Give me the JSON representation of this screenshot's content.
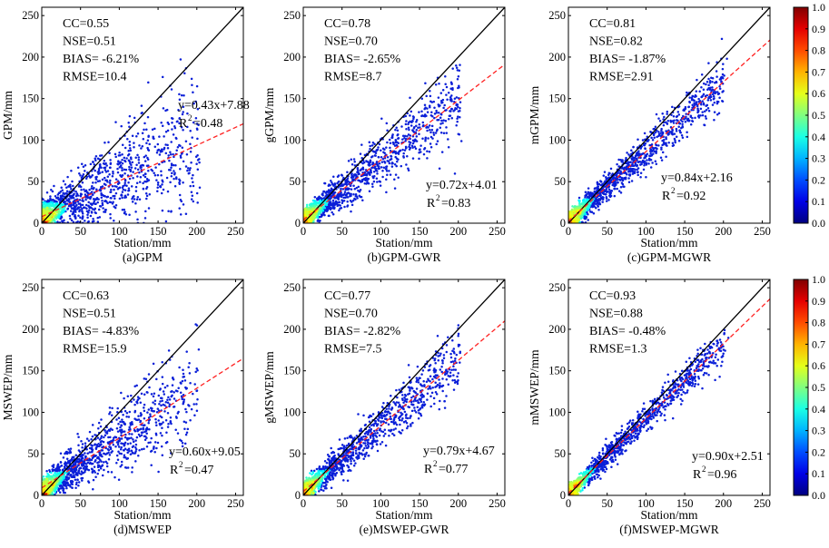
{
  "figure": {
    "colorbar": {
      "ticks": [
        "1.0",
        "0.9",
        "0.8",
        "0.7",
        "0.6",
        "0.5",
        "0.4",
        "0.3",
        "0.2",
        "0.1",
        "0.0"
      ]
    },
    "colors": {
      "points": "#0a1fd8",
      "fit_line": "#ff2020",
      "one_to_one": "#000000"
    }
  },
  "chart_data": [
    {
      "type": "scatter",
      "caption": "(a)GPM",
      "xlabel": "Station/mm",
      "ylabel": "GPM/mm",
      "xlim": [
        0,
        260
      ],
      "ylim": [
        0,
        260
      ],
      "xticks": [
        "0",
        "50",
        "100",
        "150",
        "200",
        "250"
      ],
      "yticks": [
        "0",
        "50",
        "100",
        "150",
        "200",
        "250"
      ],
      "stats": [
        "CC=0.55",
        "NSE=0.51",
        "BIAS= -6.21%",
        "RMSE=10.4"
      ],
      "fit_eq": "y=0.43x+7.88",
      "r2_prefix": "R",
      "r2_value": "=0.48",
      "fit": {
        "slope": 0.43,
        "intercept": 7.88
      }
    },
    {
      "type": "scatter",
      "caption": "(b)GPM-GWR",
      "xlabel": "Station/mm",
      "ylabel": "gGPM/mm",
      "xlim": [
        0,
        260
      ],
      "ylim": [
        0,
        260
      ],
      "xticks": [
        "0",
        "50",
        "100",
        "150",
        "200",
        "250"
      ],
      "yticks": [
        "0",
        "50",
        "100",
        "150",
        "200",
        "250"
      ],
      "stats": [
        "CC=0.78",
        "NSE=0.70",
        "BIAS= -2.65%",
        "RMSE=8.7"
      ],
      "fit_eq": "y=0.72x+4.01",
      "r2_prefix": "R",
      "r2_value": "=0.83",
      "fit": {
        "slope": 0.72,
        "intercept": 4.01
      }
    },
    {
      "type": "scatter",
      "caption": "(c)GPM-MGWR",
      "xlabel": "Station/mm",
      "ylabel": "mGPM/mm",
      "xlim": [
        0,
        260
      ],
      "ylim": [
        0,
        260
      ],
      "xticks": [
        "0",
        "50",
        "100",
        "150",
        "200",
        "250"
      ],
      "yticks": [
        "0",
        "50",
        "100",
        "150",
        "200",
        "250"
      ],
      "stats": [
        "CC=0.81",
        "NSE=0.82",
        "BIAS= -1.87%",
        "RMSE=2.91"
      ],
      "fit_eq": "y=0.84x+2.16",
      "r2_prefix": "R",
      "r2_value": "=0.92",
      "fit": {
        "slope": 0.84,
        "intercept": 2.16
      }
    },
    {
      "type": "scatter",
      "caption": "(d)MSWEP",
      "xlabel": "Station/mm",
      "ylabel": "MSWEP/mm",
      "xlim": [
        0,
        260
      ],
      "ylim": [
        0,
        260
      ],
      "xticks": [
        "0",
        "50",
        "100",
        "150",
        "200",
        "250"
      ],
      "yticks": [
        "0",
        "50",
        "100",
        "150",
        "200",
        "250"
      ],
      "stats": [
        "CC=0.63",
        "NSE=0.51",
        "BIAS= -4.83%",
        "RMSE=15.9"
      ],
      "fit_eq": "y=0.60x+9.05",
      "r2_prefix": "R",
      "r2_value": "=0.47",
      "fit": {
        "slope": 0.6,
        "intercept": 9.05
      }
    },
    {
      "type": "scatter",
      "caption": "(e)MSWEP-GWR",
      "xlabel": "Station/mm",
      "ylabel": "gMSWEP/mm",
      "xlim": [
        0,
        260
      ],
      "ylim": [
        0,
        260
      ],
      "xticks": [
        "0",
        "50",
        "100",
        "150",
        "200",
        "250"
      ],
      "yticks": [
        "0",
        "50",
        "100",
        "150",
        "200",
        "250"
      ],
      "stats": [
        "CC=0.77",
        "NSE=0.70",
        "BIAS= -2.82%",
        "RMSE=7.5"
      ],
      "fit_eq": "y=0.79x+4.67",
      "r2_prefix": "R",
      "r2_value": "=0.77",
      "fit": {
        "slope": 0.79,
        "intercept": 4.67
      }
    },
    {
      "type": "scatter",
      "caption": "(f)MSWEP-MGWR",
      "xlabel": "Station/mm",
      "ylabel": "mMSWEP/mm",
      "xlim": [
        0,
        260
      ],
      "ylim": [
        0,
        260
      ],
      "xticks": [
        "0",
        "50",
        "100",
        "150",
        "200",
        "250"
      ],
      "yticks": [
        "0",
        "50",
        "100",
        "150",
        "200",
        "250"
      ],
      "stats": [
        "CC=0.93",
        "NSE=0.88",
        "BIAS= -0.48%",
        "RMSE=1.3"
      ],
      "fit_eq": "y=0.90x+2.51",
      "r2_prefix": "R",
      "r2_value": "=0.96",
      "fit": {
        "slope": 0.9,
        "intercept": 2.51
      }
    }
  ]
}
